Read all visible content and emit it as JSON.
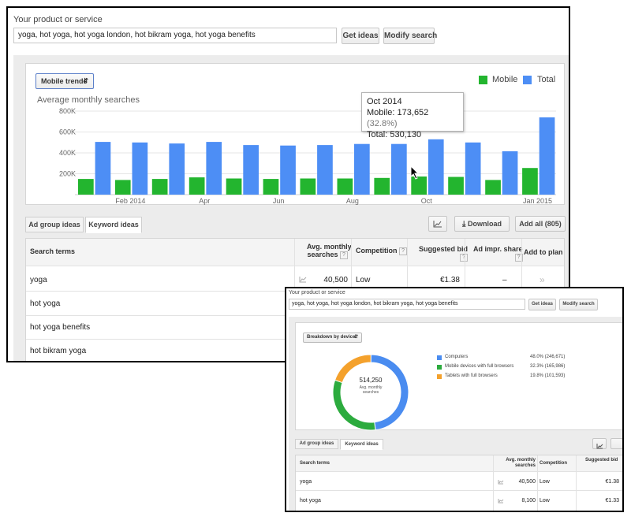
{
  "top": {
    "label": "Your product or service",
    "input_value": "yoga, hot yoga, hot yoga london, hot bikram yoga, hot yoga benefits",
    "get_ideas": "Get ideas",
    "modify_search": "Modify search",
    "trend_select": "Mobile trends",
    "legend": [
      {
        "name": "Mobile",
        "color": "#23b52f"
      },
      {
        "name": "Total",
        "color": "#4d8ef5"
      }
    ],
    "chart_title": "Average monthly searches",
    "tooltip": {
      "month": "Oct 2014",
      "mobile_label": "Mobile:",
      "mobile_value": "173,652",
      "mobile_pct": "(32.8%)",
      "total_label": "Total:",
      "total_value": "530,130"
    },
    "tabs": [
      "Ad group ideas",
      "Keyword ideas"
    ],
    "download": "Download",
    "add_all": "Add all (805)",
    "table": {
      "headers": {
        "search_terms": "Search terms",
        "avg_l1": "Avg. monthly",
        "avg_l2": "searches",
        "competition": "Competition",
        "bid": "Suggested bid",
        "impr": "Ad impr. share",
        "add": "Add to plan"
      },
      "rows": [
        {
          "term": "yoga",
          "searches": "40,500",
          "competition": "Low",
          "bid": "€1.38",
          "impr": "–",
          "add": "»"
        },
        {
          "term": "hot yoga"
        },
        {
          "term": "hot yoga benefits"
        },
        {
          "term": "hot bikram yoga"
        }
      ]
    }
  },
  "chart_data": {
    "type": "bar",
    "title": "Average monthly searches",
    "categories": [
      "Jan 2014",
      "Feb 2014",
      "Mar 2014",
      "Apr 2014",
      "May 2014",
      "Jun 2014",
      "Jul 2014",
      "Aug 2014",
      "Sep 2014",
      "Oct 2014",
      "Nov 2014",
      "Dec 2014",
      "Jan 2015"
    ],
    "tick_labels": [
      "Feb 2014",
      "Apr",
      "Jun",
      "Aug",
      "Oct",
      "Jan 2015"
    ],
    "series": [
      {
        "name": "Mobile",
        "color": "#23b52f",
        "values": [
          150000,
          140000,
          150000,
          165000,
          155000,
          150000,
          155000,
          155000,
          160000,
          173652,
          170000,
          140000,
          255000
        ]
      },
      {
        "name": "Total",
        "color": "#4d8ef5",
        "values": [
          505000,
          500000,
          490000,
          505000,
          475000,
          470000,
          475000,
          485000,
          485000,
          530130,
          500000,
          415000,
          740000
        ]
      }
    ],
    "y_ticks": [
      "200K",
      "400K",
      "600K",
      "800K"
    ],
    "ylim": [
      0,
      800000
    ],
    "grid": true,
    "legend": "top-right"
  },
  "bottom": {
    "label": "Your product or service",
    "input_value": "yoga, hot yoga, hot yoga london, hot bikram yoga, hot yoga benefits",
    "get_ideas": "Get ideas",
    "modify_search": "Modify search",
    "breakdown_select": "Breakdown by device",
    "donut_center_value": "514,250",
    "donut_center_l1": "Avg. monthly",
    "donut_center_l2": "searches",
    "devices": [
      {
        "name": "Computers",
        "value": "48.0% (246,671)",
        "color": "#4a8cf0",
        "fraction": 0.48
      },
      {
        "name": "Mobile devices with full browsers",
        "value": "32.3% (165,986)",
        "color": "#2cab3e",
        "fraction": 0.323
      },
      {
        "name": "Tablets with full browsers",
        "value": "19.8% (101,593)",
        "color": "#f4a12c",
        "fraction": 0.198
      }
    ],
    "tabs": [
      "Ad group ideas",
      "Keyword ideas"
    ],
    "table": {
      "headers": {
        "search_terms": "Search terms",
        "avg_l1": "Avg. monthly",
        "avg_l2": "searches",
        "competition": "Competition",
        "bid_l1": "Suggested bid"
      },
      "rows": [
        {
          "term": "yoga",
          "searches": "40,500",
          "competition": "Low",
          "bid": "€1.38"
        },
        {
          "term": "hot yoga",
          "searches": "8,100",
          "competition": "Low",
          "bid": "€1.33"
        }
      ]
    }
  }
}
